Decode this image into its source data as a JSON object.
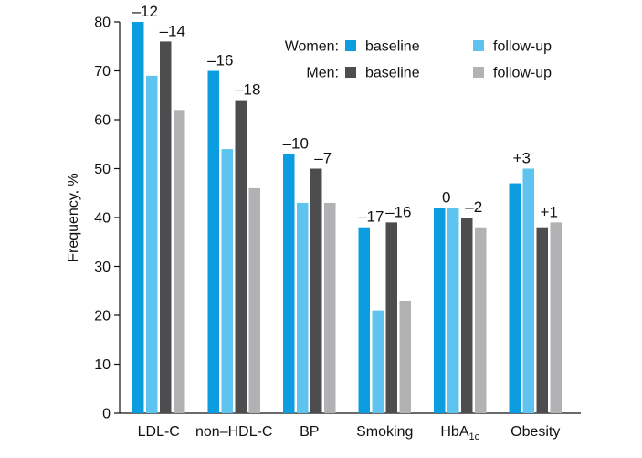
{
  "chart_data": {
    "type": "bar",
    "ylabel": "Frequency, %",
    "ylim": [
      0,
      80
    ],
    "yticks": [
      0,
      10,
      20,
      30,
      40,
      50,
      60,
      70,
      80
    ],
    "grid": false,
    "legend_position": "top-right",
    "categories": [
      {
        "label": "LDL-C",
        "subscript": ""
      },
      {
        "label": "non–HDL-C",
        "subscript": ""
      },
      {
        "label": "BP",
        "subscript": ""
      },
      {
        "label": "Smoking",
        "subscript": ""
      },
      {
        "label": "HbA",
        "subscript": "1c"
      },
      {
        "label": "Obesity",
        "subscript": ""
      }
    ],
    "series": [
      {
        "name": "baseline",
        "group": "Women",
        "color": "#0b9de0",
        "values": [
          80,
          70,
          53,
          38,
          42,
          47
        ]
      },
      {
        "name": "follow-up",
        "group": "Women",
        "color": "#5ec4ef",
        "values": [
          69,
          54,
          43,
          21,
          42,
          50
        ]
      },
      {
        "name": "baseline",
        "group": "Men",
        "color": "#4d4d4f",
        "values": [
          76,
          64,
          50,
          39,
          40,
          38
        ]
      },
      {
        "name": "follow-up",
        "group": "Men",
        "color": "#b2b2b4",
        "values": [
          62,
          46,
          43,
          23,
          38,
          39
        ]
      }
    ],
    "annotations": [
      {
        "category": 0,
        "group": "Women",
        "text": "–12"
      },
      {
        "category": 0,
        "group": "Men",
        "text": "–14"
      },
      {
        "category": 1,
        "group": "Women",
        "text": "–16"
      },
      {
        "category": 1,
        "group": "Men",
        "text": "–18"
      },
      {
        "category": 2,
        "group": "Women",
        "text": "–10"
      },
      {
        "category": 2,
        "group": "Men",
        "text": "–7"
      },
      {
        "category": 3,
        "group": "Women",
        "text": "–17"
      },
      {
        "category": 3,
        "group": "Men",
        "text": "–16"
      },
      {
        "category": 4,
        "group": "Women",
        "text": "0"
      },
      {
        "category": 4,
        "group": "Men",
        "text": "–2"
      },
      {
        "category": 5,
        "group": "Women",
        "text": "+3"
      },
      {
        "category": 5,
        "group": "Men",
        "text": "+1"
      }
    ],
    "legend": {
      "rows": [
        {
          "label": "Women:",
          "items": [
            {
              "series": 0,
              "text": "baseline"
            },
            {
              "series": 1,
              "text": "follow-up"
            }
          ]
        },
        {
          "label": "Men:",
          "items": [
            {
              "series": 2,
              "text": "baseline"
            },
            {
              "series": 3,
              "text": "follow-up"
            }
          ]
        }
      ]
    }
  }
}
